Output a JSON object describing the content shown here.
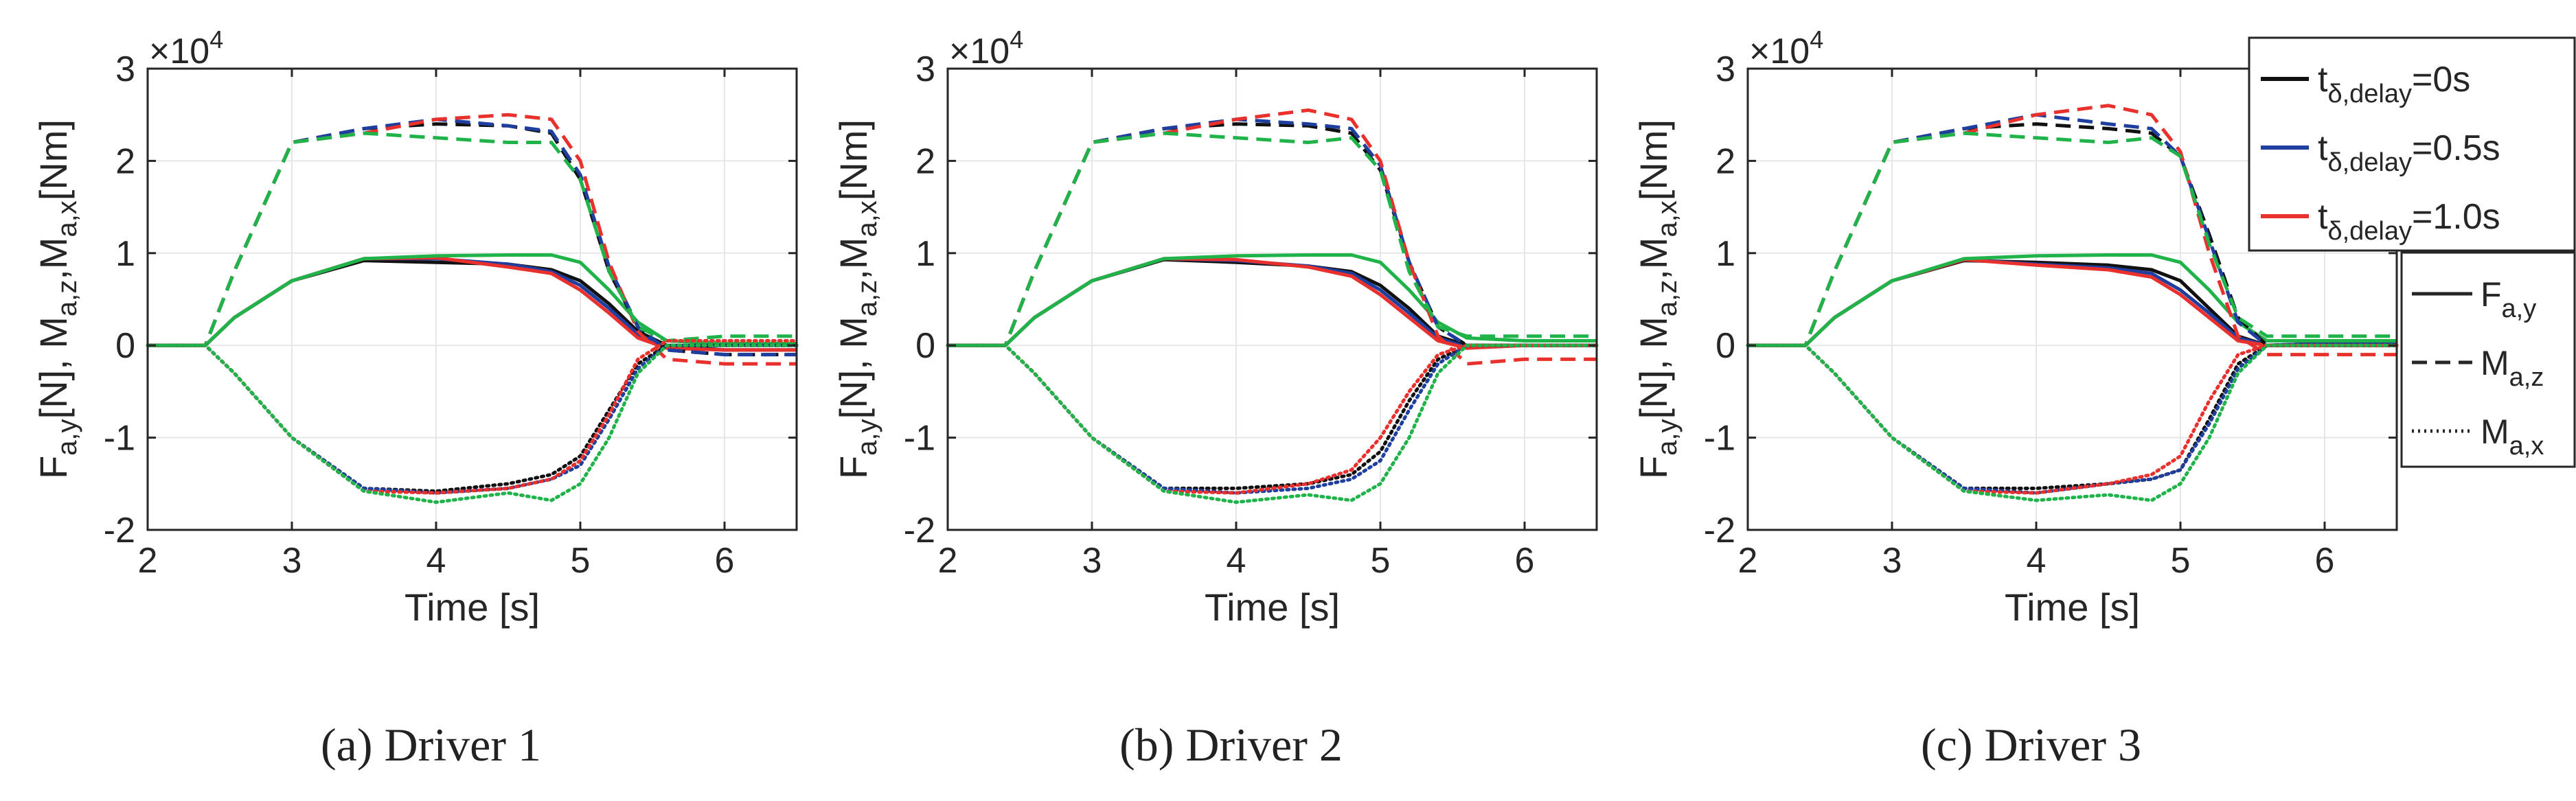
{
  "figure": {
    "colors": {
      "black": "#111111",
      "blue": "#1f3fa0",
      "red": "#e8302d",
      "green": "#1fb34a",
      "grid": "#e6e6e6",
      "axis": "#262626"
    },
    "legend_color": {
      "title": "t_{δ,delay}",
      "entries": [
        {
          "base": "t",
          "sub": "δ,delay",
          "suffix": "=0s",
          "color": "#111111"
        },
        {
          "base": "t",
          "sub": "δ,delay",
          "suffix": "=0.5s",
          "color": "#1f3fa0"
        },
        {
          "base": "t",
          "sub": "δ,delay",
          "suffix": "=1.0s",
          "color": "#e8302d"
        }
      ]
    },
    "legend_style": {
      "entries": [
        {
          "base": "F",
          "sub": "a,y",
          "dash": "solid"
        },
        {
          "base": "M",
          "sub": "a,z",
          "dash": "dashed"
        },
        {
          "base": "M",
          "sub": "a,x",
          "dash": "dotted"
        }
      ]
    }
  },
  "chart_data": [
    {
      "type": "line",
      "caption": "(a) Driver 1",
      "xlabel": "Time [s]",
      "ylabel": "F_{a,y}[N], M_{a,z},M_{a,x}[Nm]",
      "y_exponent": "×10^4",
      "xlim": [
        2,
        6.5
      ],
      "ylim": [
        -2,
        3
      ],
      "xticks": [
        "2",
        "3",
        "4",
        "5",
        "6"
      ],
      "yticks": [
        "-2",
        "-1",
        "0",
        "1",
        "2",
        "3"
      ],
      "grid": true,
      "y_scale": 10000,
      "x": [
        2.0,
        2.4,
        2.6,
        3.0,
        3.5,
        4.0,
        4.5,
        4.8,
        5.0,
        5.2,
        5.4,
        5.6,
        6.0,
        6.5
      ],
      "series": [
        {
          "name": "F_{a,y} t=0s",
          "color": "black",
          "dash": "solid",
          "values": [
            0,
            0,
            0.3,
            0.7,
            0.92,
            0.9,
            0.88,
            0.82,
            0.7,
            0.45,
            0.15,
            0.0,
            -0.05,
            -0.05
          ]
        },
        {
          "name": "F_{a,y} t=0.5s",
          "color": "blue",
          "dash": "solid",
          "values": [
            0,
            0,
            0.3,
            0.7,
            0.94,
            0.94,
            0.88,
            0.8,
            0.65,
            0.4,
            0.12,
            -0.02,
            -0.05,
            -0.05
          ]
        },
        {
          "name": "F_{a,y} t=1.0s",
          "color": "red",
          "dash": "solid",
          "values": [
            0,
            0,
            0.3,
            0.7,
            0.94,
            0.95,
            0.85,
            0.78,
            0.6,
            0.35,
            0.08,
            -0.03,
            -0.05,
            -0.05
          ]
        },
        {
          "name": "F_{a,y} green",
          "color": "green",
          "dash": "solid",
          "values": [
            0,
            0,
            0.3,
            0.7,
            0.94,
            0.97,
            0.98,
            0.98,
            0.9,
            0.6,
            0.25,
            0.05,
            0.02,
            0.02
          ]
        },
        {
          "name": "M_{a,z} t=0s",
          "color": "black",
          "dash": "dashed",
          "values": [
            0,
            0,
            0.8,
            2.2,
            2.35,
            2.4,
            2.38,
            2.3,
            1.8,
            0.8,
            0.2,
            -0.05,
            -0.1,
            -0.1
          ]
        },
        {
          "name": "M_{a,z} t=0.5s",
          "color": "blue",
          "dash": "dashed",
          "values": [
            0,
            0,
            0.8,
            2.2,
            2.35,
            2.45,
            2.38,
            2.32,
            1.85,
            0.85,
            0.2,
            -0.05,
            -0.1,
            -0.1
          ]
        },
        {
          "name": "M_{a,z} t=1.0s",
          "color": "red",
          "dash": "dashed",
          "values": [
            0,
            0,
            0.8,
            2.2,
            2.3,
            2.45,
            2.5,
            2.45,
            2.0,
            0.9,
            0.15,
            -0.15,
            -0.2,
            -0.2
          ]
        },
        {
          "name": "M_{a,z} green",
          "color": "green",
          "dash": "dashed",
          "values": [
            0,
            0,
            0.8,
            2.2,
            2.3,
            2.25,
            2.2,
            2.2,
            1.8,
            0.8,
            0.2,
            0.05,
            0.1,
            0.1
          ]
        },
        {
          "name": "M_{a,x} t=0s",
          "color": "black",
          "dash": "dotted",
          "values": [
            0,
            0,
            -0.3,
            -1.0,
            -1.55,
            -1.58,
            -1.5,
            -1.4,
            -1.2,
            -0.7,
            -0.2,
            0.0,
            0.0,
            0.0
          ]
        },
        {
          "name": "M_{a,x} t=0.5s",
          "color": "blue",
          "dash": "dotted",
          "values": [
            0,
            0,
            -0.3,
            -1.0,
            -1.55,
            -1.6,
            -1.55,
            -1.45,
            -1.3,
            -0.8,
            -0.25,
            0.0,
            0.0,
            0.0
          ]
        },
        {
          "name": "M_{a,x} t=1.0s",
          "color": "red",
          "dash": "dotted",
          "values": [
            0,
            0,
            -0.3,
            -1.0,
            -1.58,
            -1.6,
            -1.55,
            -1.45,
            -1.25,
            -0.75,
            -0.15,
            0.05,
            0.05,
            0.05
          ]
        },
        {
          "name": "M_{a,x} green",
          "color": "green",
          "dash": "dotted",
          "values": [
            0,
            0,
            -0.3,
            -1.0,
            -1.58,
            -1.7,
            -1.6,
            -1.68,
            -1.5,
            -1.0,
            -0.3,
            0.0,
            0.0,
            0.0
          ]
        }
      ]
    },
    {
      "type": "line",
      "caption": "(b) Driver 2",
      "xlabel": "Time [s]",
      "ylabel": "F_{a,y}[N], M_{a,z},M_{a,x}[Nm]",
      "y_exponent": "×10^4",
      "xlim": [
        2,
        6.5
      ],
      "ylim": [
        -2,
        3
      ],
      "xticks": [
        "2",
        "3",
        "4",
        "5",
        "6"
      ],
      "yticks": [
        "-2",
        "-1",
        "0",
        "1",
        "2",
        "3"
      ],
      "grid": true,
      "y_scale": 10000,
      "x": [
        2.0,
        2.4,
        2.6,
        3.0,
        3.5,
        4.0,
        4.5,
        4.8,
        5.0,
        5.2,
        5.4,
        5.6,
        6.0,
        6.5
      ],
      "series": [
        {
          "name": "F_{a,y} t=0s",
          "color": "black",
          "dash": "solid",
          "values": [
            0,
            0,
            0.3,
            0.7,
            0.93,
            0.9,
            0.86,
            0.8,
            0.65,
            0.4,
            0.1,
            0.0,
            0.0,
            0.0
          ]
        },
        {
          "name": "F_{a,y} t=0.5s",
          "color": "blue",
          "dash": "solid",
          "values": [
            0,
            0,
            0.3,
            0.7,
            0.94,
            0.92,
            0.86,
            0.78,
            0.6,
            0.35,
            0.08,
            -0.02,
            0.0,
            0.0
          ]
        },
        {
          "name": "F_{a,y} t=1.0s",
          "color": "red",
          "dash": "solid",
          "values": [
            0,
            0,
            0.3,
            0.7,
            0.94,
            0.93,
            0.85,
            0.75,
            0.55,
            0.3,
            0.05,
            -0.03,
            0.0,
            0.0
          ]
        },
        {
          "name": "F_{a,y} green",
          "color": "green",
          "dash": "solid",
          "values": [
            0,
            0,
            0.3,
            0.7,
            0.94,
            0.97,
            0.98,
            0.98,
            0.9,
            0.6,
            0.25,
            0.08,
            0.05,
            0.05
          ]
        },
        {
          "name": "M_{a,z} t=0s",
          "color": "black",
          "dash": "dashed",
          "values": [
            0,
            0,
            0.8,
            2.2,
            2.35,
            2.4,
            2.38,
            2.3,
            1.9,
            0.9,
            0.2,
            0.0,
            0.0,
            0.0
          ]
        },
        {
          "name": "M_{a,z} t=0.5s",
          "color": "blue",
          "dash": "dashed",
          "values": [
            0,
            0,
            0.8,
            2.2,
            2.35,
            2.45,
            2.4,
            2.35,
            1.95,
            0.9,
            0.2,
            0.0,
            0.0,
            0.0
          ]
        },
        {
          "name": "M_{a,z} t=1.0s",
          "color": "red",
          "dash": "dashed",
          "values": [
            0,
            0,
            0.8,
            2.2,
            2.3,
            2.45,
            2.55,
            2.45,
            2.0,
            0.9,
            0.1,
            -0.2,
            -0.15,
            -0.15
          ]
        },
        {
          "name": "M_{a,z} green",
          "color": "green",
          "dash": "dashed",
          "values": [
            0,
            0,
            0.8,
            2.2,
            2.3,
            2.25,
            2.2,
            2.25,
            1.9,
            0.8,
            0.2,
            0.1,
            0.1,
            0.1
          ]
        },
        {
          "name": "M_{a,x} t=0s",
          "color": "black",
          "dash": "dotted",
          "values": [
            0,
            0,
            -0.3,
            -1.0,
            -1.55,
            -1.55,
            -1.5,
            -1.4,
            -1.15,
            -0.6,
            -0.15,
            0.0,
            0.0,
            0.0
          ]
        },
        {
          "name": "M_{a,x} t=0.5s",
          "color": "blue",
          "dash": "dotted",
          "values": [
            0,
            0,
            -0.3,
            -1.0,
            -1.55,
            -1.6,
            -1.55,
            -1.45,
            -1.25,
            -0.7,
            -0.2,
            0.0,
            0.0,
            0.0
          ]
        },
        {
          "name": "M_{a,x} t=1.0s",
          "color": "red",
          "dash": "dotted",
          "values": [
            0,
            0,
            -0.3,
            -1.0,
            -1.58,
            -1.6,
            -1.5,
            -1.35,
            -1.0,
            -0.5,
            -0.1,
            0.0,
            0.0,
            0.0
          ]
        },
        {
          "name": "M_{a,x} green",
          "color": "green",
          "dash": "dotted",
          "values": [
            0,
            0,
            -0.3,
            -1.0,
            -1.58,
            -1.7,
            -1.62,
            -1.68,
            -1.5,
            -1.0,
            -0.3,
            0.0,
            0.0,
            0.0
          ]
        }
      ]
    },
    {
      "type": "line",
      "caption": "(c) Driver 3",
      "xlabel": "Time [s]",
      "ylabel": "F_{a,y}[N], M_{a,z},M_{a,x}[Nm]",
      "y_exponent": "×10^4",
      "xlim": [
        2,
        6.5
      ],
      "ylim": [
        -2,
        3
      ],
      "xticks": [
        "2",
        "3",
        "4",
        "5",
        "6"
      ],
      "yticks": [
        "-2",
        "-1",
        "0",
        "1",
        "2",
        "3"
      ],
      "grid": true,
      "y_scale": 10000,
      "x": [
        2.0,
        2.4,
        2.6,
        3.0,
        3.5,
        4.0,
        4.5,
        4.8,
        5.0,
        5.2,
        5.4,
        5.6,
        6.0,
        6.5
      ],
      "series": [
        {
          "name": "F_{a,y} t=0s",
          "color": "black",
          "dash": "solid",
          "values": [
            0,
            0,
            0.3,
            0.7,
            0.92,
            0.9,
            0.87,
            0.82,
            0.7,
            0.4,
            0.1,
            0.0,
            0.02,
            0.02
          ]
        },
        {
          "name": "F_{a,y} t=0.5s",
          "color": "blue",
          "dash": "solid",
          "values": [
            0,
            0,
            0.3,
            0.7,
            0.93,
            0.88,
            0.84,
            0.78,
            0.6,
            0.35,
            0.08,
            0.0,
            0.02,
            0.02
          ]
        },
        {
          "name": "F_{a,y} t=1.0s",
          "color": "red",
          "dash": "solid",
          "values": [
            0,
            0,
            0.3,
            0.7,
            0.93,
            0.87,
            0.82,
            0.74,
            0.55,
            0.3,
            0.05,
            0.0,
            0.0,
            0.0
          ]
        },
        {
          "name": "F_{a,y} green",
          "color": "green",
          "dash": "solid",
          "values": [
            0,
            0,
            0.3,
            0.7,
            0.94,
            0.97,
            0.98,
            0.98,
            0.9,
            0.6,
            0.25,
            0.05,
            0.05,
            0.05
          ]
        },
        {
          "name": "M_{a,z} t=0s",
          "color": "black",
          "dash": "dashed",
          "values": [
            0,
            0,
            0.8,
            2.2,
            2.35,
            2.4,
            2.35,
            2.3,
            2.05,
            1.2,
            0.3,
            0.0,
            0.0,
            0.0
          ]
        },
        {
          "name": "M_{a,z} t=0.5s",
          "color": "blue",
          "dash": "dashed",
          "values": [
            0,
            0,
            0.8,
            2.2,
            2.35,
            2.5,
            2.4,
            2.35,
            2.05,
            1.15,
            0.25,
            0.0,
            0.0,
            0.0
          ]
        },
        {
          "name": "M_{a,z} t=1.0s",
          "color": "red",
          "dash": "dashed",
          "values": [
            0,
            0,
            0.8,
            2.2,
            2.3,
            2.5,
            2.6,
            2.5,
            2.1,
            1.0,
            0.1,
            -0.1,
            -0.1,
            -0.1
          ]
        },
        {
          "name": "M_{a,z} green",
          "color": "green",
          "dash": "dashed",
          "values": [
            0,
            0,
            0.8,
            2.2,
            2.3,
            2.25,
            2.2,
            2.25,
            2.05,
            1.1,
            0.3,
            0.1,
            0.1,
            0.1
          ]
        },
        {
          "name": "M_{a,x} t=0s",
          "color": "black",
          "dash": "dotted",
          "values": [
            0,
            0,
            -0.3,
            -1.0,
            -1.55,
            -1.55,
            -1.5,
            -1.45,
            -1.35,
            -0.8,
            -0.2,
            0.0,
            0.0,
            0.0
          ]
        },
        {
          "name": "M_{a,x} t=0.5s",
          "color": "blue",
          "dash": "dotted",
          "values": [
            0,
            0,
            -0.3,
            -1.0,
            -1.55,
            -1.6,
            -1.5,
            -1.45,
            -1.35,
            -0.85,
            -0.25,
            0.0,
            0.0,
            0.0
          ]
        },
        {
          "name": "M_{a,x} t=1.0s",
          "color": "red",
          "dash": "dotted",
          "values": [
            0,
            0,
            -0.3,
            -1.0,
            -1.58,
            -1.6,
            -1.5,
            -1.4,
            -1.2,
            -0.6,
            -0.1,
            0.0,
            0.0,
            0.0
          ]
        },
        {
          "name": "M_{a,x} green",
          "color": "green",
          "dash": "dotted",
          "values": [
            0,
            0,
            -0.3,
            -1.0,
            -1.58,
            -1.68,
            -1.62,
            -1.68,
            -1.5,
            -1.0,
            -0.3,
            0.0,
            0.0,
            0.0
          ]
        }
      ]
    }
  ]
}
